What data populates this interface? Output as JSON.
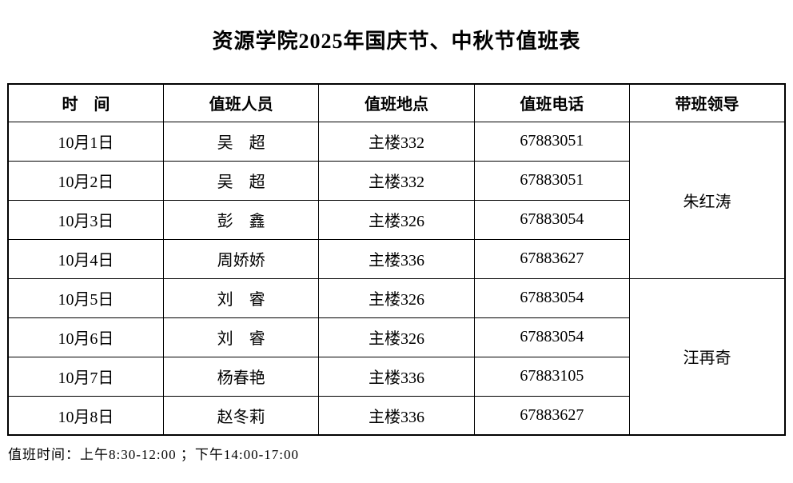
{
  "title": "资源学院2025年国庆节、中秋节值班表",
  "table": {
    "headers": {
      "time": "时　间",
      "person": "值班人员",
      "location": "值班地点",
      "phone": "值班电话",
      "leader": "带班领导"
    },
    "rows": [
      {
        "date": "10月1日",
        "person": "吴　超",
        "location": "主楼332",
        "phone": "67883051"
      },
      {
        "date": "10月2日",
        "person": "吴　超",
        "location": "主楼332",
        "phone": "67883051"
      },
      {
        "date": "10月3日",
        "person": "彭　鑫",
        "location": "主楼326",
        "phone": "67883054"
      },
      {
        "date": "10月4日",
        "person": "周娇娇",
        "location": "主楼336",
        "phone": "67883627"
      },
      {
        "date": "10月5日",
        "person": "刘　睿",
        "location": "主楼326",
        "phone": "67883054"
      },
      {
        "date": "10月6日",
        "person": "刘　睿",
        "location": "主楼326",
        "phone": "67883054"
      },
      {
        "date": "10月7日",
        "person": "杨春艳",
        "location": "主楼336",
        "phone": "67883105"
      },
      {
        "date": "10月8日",
        "person": "赵冬莉",
        "location": "主楼336",
        "phone": "67883627"
      }
    ],
    "leaders": [
      {
        "name": "朱红涛"
      },
      {
        "name": "汪再奇"
      }
    ]
  },
  "footer_note": "值班时间：上午8:30-12:00 ；下午14:00-17:00"
}
